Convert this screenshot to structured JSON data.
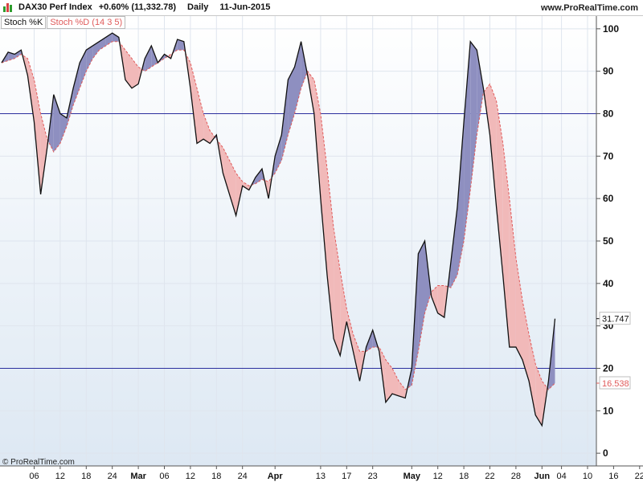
{
  "header": {
    "instrument": "DAX30 Perf Index",
    "change": "+0.60% (11,332.78)",
    "period": "Daily",
    "date": "11-Jun-2015",
    "site": "www.ProRealTime.com"
  },
  "legend": {
    "k_label": "Stoch %K",
    "d_label": "Stoch %D (14 3 5)"
  },
  "copyright": "© ProRealTime.com",
  "colors": {
    "k_line": "#111111",
    "d_line": "#e05b5b",
    "k_above_fill": "#8e8fc0",
    "d_above_fill": "#f1b9b9",
    "level_line": "#2b2f9e",
    "bg_top": "#ffffff",
    "bg_bottom": "#dde8f3",
    "grid": "#dfe5ee",
    "d_marker_text": "#e05b5b"
  },
  "chart_data": {
    "type": "line",
    "ylim": [
      -3,
      103
    ],
    "yticks": [
      0,
      10,
      20,
      30,
      40,
      50,
      60,
      70,
      80,
      90,
      100
    ],
    "levels": [
      20,
      80
    ],
    "x_tick_labels": [
      {
        "i": 5,
        "label": "06",
        "month": false
      },
      {
        "i": 9,
        "label": "12",
        "month": false
      },
      {
        "i": 13,
        "label": "18",
        "month": false
      },
      {
        "i": 17,
        "label": "24",
        "month": false
      },
      {
        "i": 21,
        "label": "Mar",
        "month": true
      },
      {
        "i": 25,
        "label": "06",
        "month": false
      },
      {
        "i": 29,
        "label": "12",
        "month": false
      },
      {
        "i": 33,
        "label": "18",
        "month": false
      },
      {
        "i": 37,
        "label": "24",
        "month": false
      },
      {
        "i": 42,
        "label": "Apr",
        "month": true
      },
      {
        "i": 49,
        "label": "13",
        "month": false
      },
      {
        "i": 53,
        "label": "17",
        "month": false
      },
      {
        "i": 57,
        "label": "23",
        "month": false
      },
      {
        "i": 63,
        "label": "May",
        "month": true
      },
      {
        "i": 67,
        "label": "12",
        "month": false
      },
      {
        "i": 71,
        "label": "18",
        "month": false
      },
      {
        "i": 75,
        "label": "22",
        "month": false
      },
      {
        "i": 79,
        "label": "28",
        "month": false
      },
      {
        "i": 83,
        "label": "Jun",
        "month": true
      },
      {
        "i": 86,
        "label": "04",
        "month": false
      },
      {
        "i": 90,
        "label": "10",
        "month": false
      },
      {
        "i": 94,
        "label": "16",
        "month": false
      },
      {
        "i": 98,
        "label": "22",
        "month": false
      }
    ],
    "series": [
      {
        "name": "Stoch %K",
        "values": [
          92,
          94.5,
          94,
          95,
          89,
          78,
          61,
          72,
          84.5,
          80,
          79,
          86,
          92,
          95,
          96,
          97,
          98,
          99,
          98,
          88,
          86,
          87,
          93,
          96,
          92,
          94,
          93,
          97.5,
          97,
          86,
          73,
          74,
          73,
          75,
          66,
          61,
          56,
          63,
          62,
          65,
          67,
          60,
          70,
          75,
          88,
          91,
          97,
          89,
          80,
          60,
          42,
          27,
          23,
          31,
          24,
          17,
          25,
          29,
          24,
          12,
          14,
          13.5,
          13,
          20,
          47,
          50,
          37,
          33,
          32,
          45,
          58,
          78,
          97,
          95,
          86,
          75,
          58,
          42,
          25,
          25,
          22,
          17,
          9,
          6.5,
          17,
          31.7
        ]
      },
      {
        "name": "Stoch %D (14 3 5)",
        "values": [
          92,
          92.5,
          93,
          94,
          93,
          88,
          80,
          74,
          71,
          73,
          77,
          82,
          86,
          90,
          93,
          95,
          96,
          97,
          97,
          95,
          93,
          91,
          90,
          91,
          92,
          93,
          94,
          95,
          95,
          92,
          86,
          80,
          76,
          74,
          72,
          69,
          66,
          64,
          63,
          63.5,
          64.5,
          64,
          66,
          69,
          75,
          80,
          86,
          90,
          88,
          80,
          67,
          53,
          43,
          34,
          28,
          24,
          24,
          25,
          25,
          22,
          20,
          17,
          15,
          16,
          24,
          33,
          38,
          39.5,
          39.5,
          39,
          42,
          50,
          62,
          75,
          85,
          87,
          83,
          73,
          60,
          46,
          36,
          28,
          21,
          17,
          15,
          16.5
        ]
      }
    ],
    "last_values": {
      "k": "31.747",
      "d": "16.538"
    }
  }
}
